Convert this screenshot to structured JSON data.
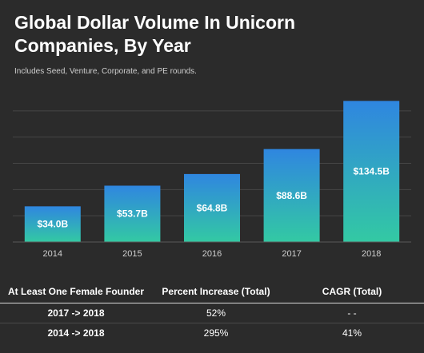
{
  "chart_data": {
    "type": "bar",
    "title": "Global Dollar Volume In Unicorn Companies, By Year",
    "subtitle": "Includes Seed, Venture, Corporate, and PE rounds.",
    "categories": [
      "2014",
      "2015",
      "2016",
      "2017",
      "2018"
    ],
    "values": [
      34.0,
      53.7,
      64.8,
      88.6,
      134.5
    ],
    "data_labels": [
      "$34.0B",
      "$53.7B",
      "$64.8B",
      "$88.6B",
      "$134.5B"
    ],
    "xlabel": "",
    "ylabel": "",
    "ylim": [
      0,
      150
    ],
    "grid": true,
    "colors": {
      "bar_top": "#2f86e0",
      "bar_bottom": "#33c9a3",
      "grid": "#464646"
    }
  },
  "table": {
    "headers": [
      "At Least One Female Founder",
      "Percent Increase (Total)",
      "CAGR (Total)"
    ],
    "rows": [
      [
        "2017 -> 2018",
        "52%",
        "- -"
      ],
      [
        "2014 -> 2018",
        "295%",
        "41%"
      ]
    ]
  }
}
